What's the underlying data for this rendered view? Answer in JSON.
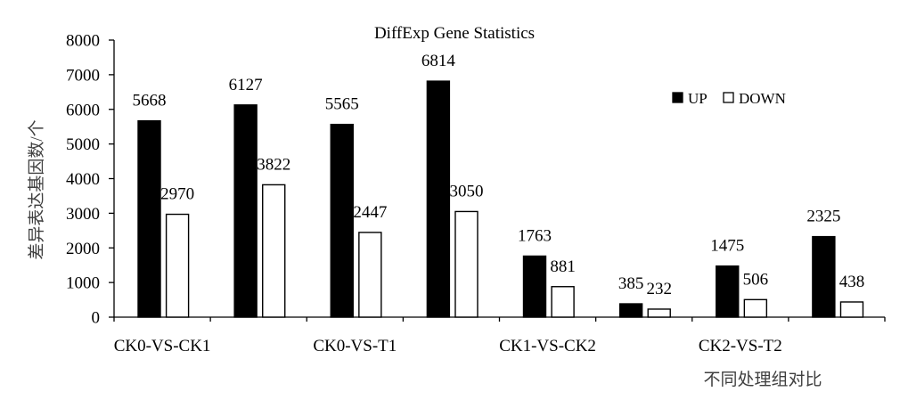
{
  "chart_data": {
    "type": "bar",
    "title": "DiffExp Gene Statistics",
    "xlabel": "不同处理组对比",
    "ylabel": "差异表达基因数/个",
    "categories": [
      "CK0-VS-CK1",
      "",
      "CK0-VS-T1",
      "",
      "CK1-VS-CK2",
      "",
      "CK2-VS-T2",
      ""
    ],
    "series": [
      {
        "name": "UP",
        "color": "#000000",
        "values": [
          5668,
          6127,
          5565,
          6814,
          1763,
          385,
          1475,
          2325
        ]
      },
      {
        "name": "DOWN",
        "color": "#ffffff",
        "values": [
          2970,
          3822,
          2447,
          3050,
          881,
          232,
          506,
          438
        ]
      }
    ],
    "ylim": [
      0,
      8000
    ],
    "yticks": [
      0,
      1000,
      2000,
      3000,
      4000,
      5000,
      6000,
      7000,
      8000
    ],
    "grid": false,
    "legend": "top-right"
  }
}
